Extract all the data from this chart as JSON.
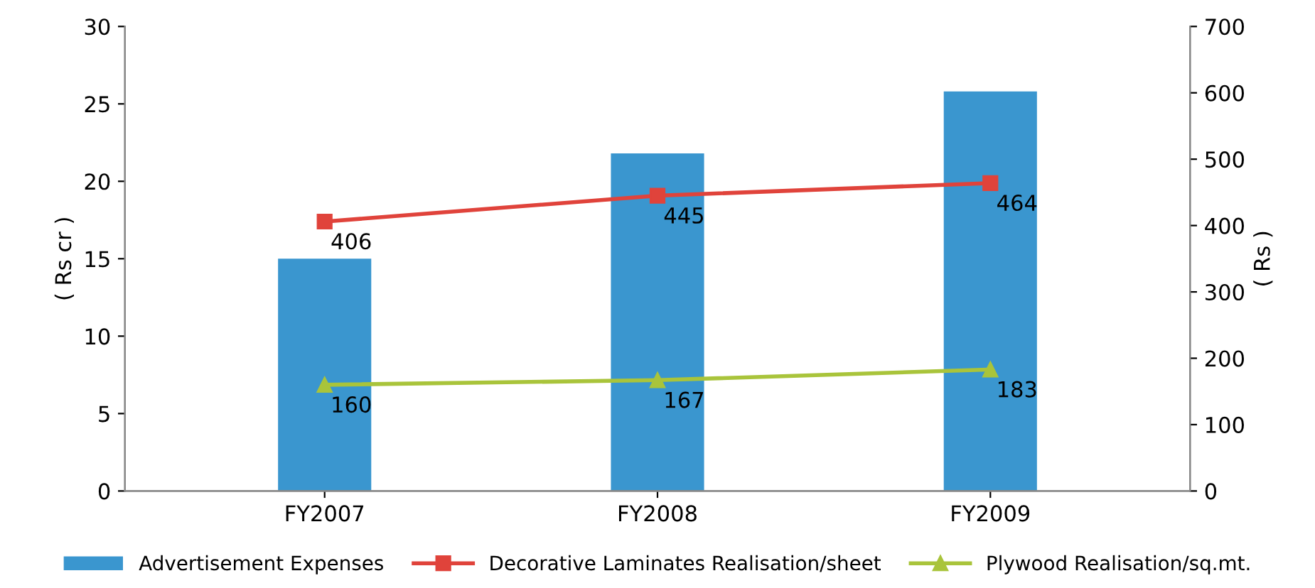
{
  "chart_data": {
    "type": "bar",
    "categories": [
      "FY2007",
      "FY2008",
      "FY2009"
    ],
    "ylabel": "( Rs cr )",
    "y2label": "( Rs )",
    "ylim": [
      0,
      30
    ],
    "yticks": [
      0,
      5,
      10,
      15,
      20,
      25,
      30
    ],
    "y2lim": [
      0,
      700
    ],
    "y2ticks": [
      0,
      100,
      200,
      300,
      400,
      500,
      600,
      700
    ],
    "grid": false,
    "legend": "bottom",
    "series": [
      {
        "name": "Advertisement Expenses",
        "color": "#3a96cf",
        "values": [
          15.0,
          21.8,
          25.8
        ]
      },
      {
        "name": "Decorative Laminates Realisation/sheet",
        "type": "line",
        "axis": "y2",
        "color": "#e0433b",
        "marker": "square",
        "values": [
          406,
          445,
          464
        ],
        "value_labels": [
          "406",
          "445",
          "464"
        ]
      },
      {
        "name": "Plywood Realisation/sq.mt.",
        "type": "line",
        "axis": "y2",
        "color": "#a9c43b",
        "marker": "triangle",
        "values": [
          160,
          167,
          183
        ],
        "value_labels": [
          "160",
          "167",
          "183"
        ]
      }
    ]
  }
}
